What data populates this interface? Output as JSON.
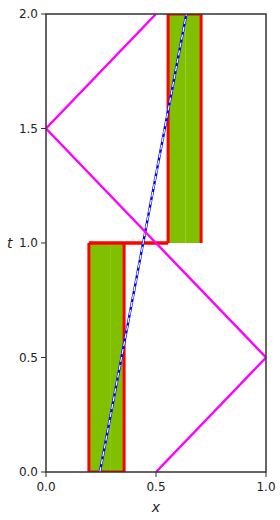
{
  "chart_data": {
    "type": "line",
    "xlabel": "x",
    "ylabel": "t",
    "xlim": [
      0,
      1
    ],
    "ylim": [
      0,
      2
    ],
    "xticks": [
      {
        "value": 0,
        "label": "0.0"
      },
      0.5,
      {
        "value": 1,
        "label": "1.0"
      }
    ],
    "yticks": [
      {
        "value": 0,
        "label": "0.0"
      },
      0.5,
      {
        "value": 1,
        "label": "1.0"
      },
      1.5,
      {
        "value": 2,
        "label": "2.0"
      }
    ],
    "grid": false,
    "series": [
      {
        "type": "area",
        "color": "#80c000",
        "x": [
          0.195,
          0.295,
          0.295,
          0.195
        ],
        "values": [
          0.0,
          0.0,
          1.0,
          1.0
        ]
      },
      {
        "type": "area",
        "color": "#80c000",
        "x": [
          0.295,
          0.355,
          0.355,
          0.295
        ],
        "values": [
          0.0,
          0.0,
          1.0,
          1.0
        ]
      },
      {
        "type": "area",
        "color": "#80c000",
        "x": [
          0.555,
          0.635,
          0.635,
          0.555
        ],
        "values": [
          1.0,
          1.0,
          2.0,
          2.0
        ]
      },
      {
        "type": "area",
        "color": "#80c000",
        "x": [
          0.635,
          0.705,
          0.705,
          0.635
        ],
        "values": [
          1.0,
          1.0,
          2.0,
          2.0
        ]
      },
      {
        "type": "line",
        "color": "red",
        "line_style": "solid",
        "x": [
          0.195,
          0.195
        ],
        "values": [
          0.0,
          1.0
        ]
      },
      {
        "type": "line",
        "color": "red",
        "line_style": "solid",
        "x": [
          0.195,
          0.355
        ],
        "values": [
          0.0,
          0.0
        ]
      },
      {
        "type": "line",
        "color": "red",
        "line_style": "solid",
        "x": [
          0.355,
          0.355
        ],
        "values": [
          0.0,
          1.0
        ]
      },
      {
        "type": "line",
        "color": "red",
        "line_style": "solid",
        "x": [
          0.195,
          0.555
        ],
        "values": [
          1.0,
          1.0
        ]
      },
      {
        "type": "line",
        "color": "red",
        "line_style": "solid",
        "x": [
          0.195,
          0.555
        ],
        "values": [
          1.0,
          1.0
        ]
      },
      {
        "type": "line",
        "color": "red",
        "line_style": "solid",
        "x": [
          0.555,
          0.555
        ],
        "values": [
          1.0,
          2.0
        ]
      },
      {
        "type": "line",
        "color": "red",
        "line_style": "solid",
        "x": [
          0.555,
          0.705
        ],
        "values": [
          2.0,
          2.0
        ]
      },
      {
        "type": "line",
        "color": "red",
        "line_style": "solid",
        "x": [
          0.705,
          0.705
        ],
        "values": [
          1.0,
          2.0
        ]
      },
      {
        "type": "line",
        "color": "blue",
        "line_style": "solid",
        "x": [
          0.245,
          0.638
        ],
        "values": [
          0.0,
          2.0
        ]
      },
      {
        "type": "line",
        "color": "white",
        "line_style": "dashed",
        "x": [
          0.245,
          0.638
        ],
        "values": [
          0.0,
          2.0
        ]
      },
      {
        "type": "line",
        "color": "magenta",
        "line_style": "solid",
        "x": [
          0.5,
          0.0,
          0.5
        ],
        "values": [
          2.0,
          1.5,
          1.0
        ]
      },
      {
        "type": "line",
        "color": "magenta",
        "line_style": "solid",
        "x": [
          0.5,
          1.0,
          0.5
        ],
        "values": [
          1.0,
          0.5,
          0.0
        ]
      }
    ]
  }
}
